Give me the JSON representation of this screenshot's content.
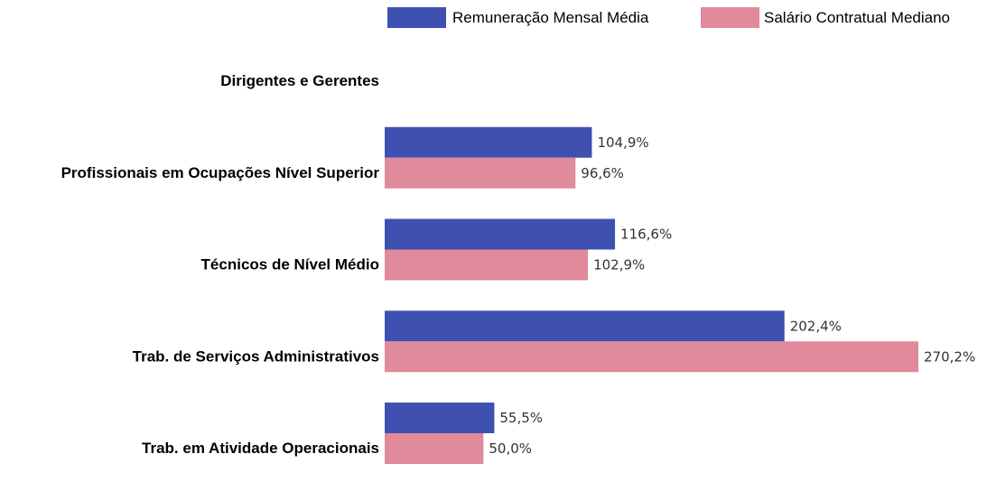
{
  "chart_data": {
    "type": "bar",
    "orientation": "horizontal",
    "categories": [
      "Dirigentes e Gerentes",
      "Profissionais em Ocupações Nível Superior",
      "Técnicos de Nível Médio",
      "Trab. de Serviços Administrativos",
      "Trab. em Atividade Operacionais"
    ],
    "series": [
      {
        "name": "Remuneração Mensal Média",
        "color": "#3F51B0",
        "values": [
          null,
          104.9,
          116.6,
          202.4,
          55.5
        ],
        "labels": [
          "",
          "104,9%",
          "116,6%",
          "202,4%",
          "55,5%"
        ]
      },
      {
        "name": "Salário Contratual Mediano",
        "color": "#E08A9C",
        "values": [
          null,
          96.6,
          102.9,
          270.2,
          50.0
        ],
        "labels": [
          "",
          "96,6%",
          "102,9%",
          "270,2%",
          "50,0%"
        ]
      }
    ],
    "legend": "top-right",
    "grid": false
  }
}
